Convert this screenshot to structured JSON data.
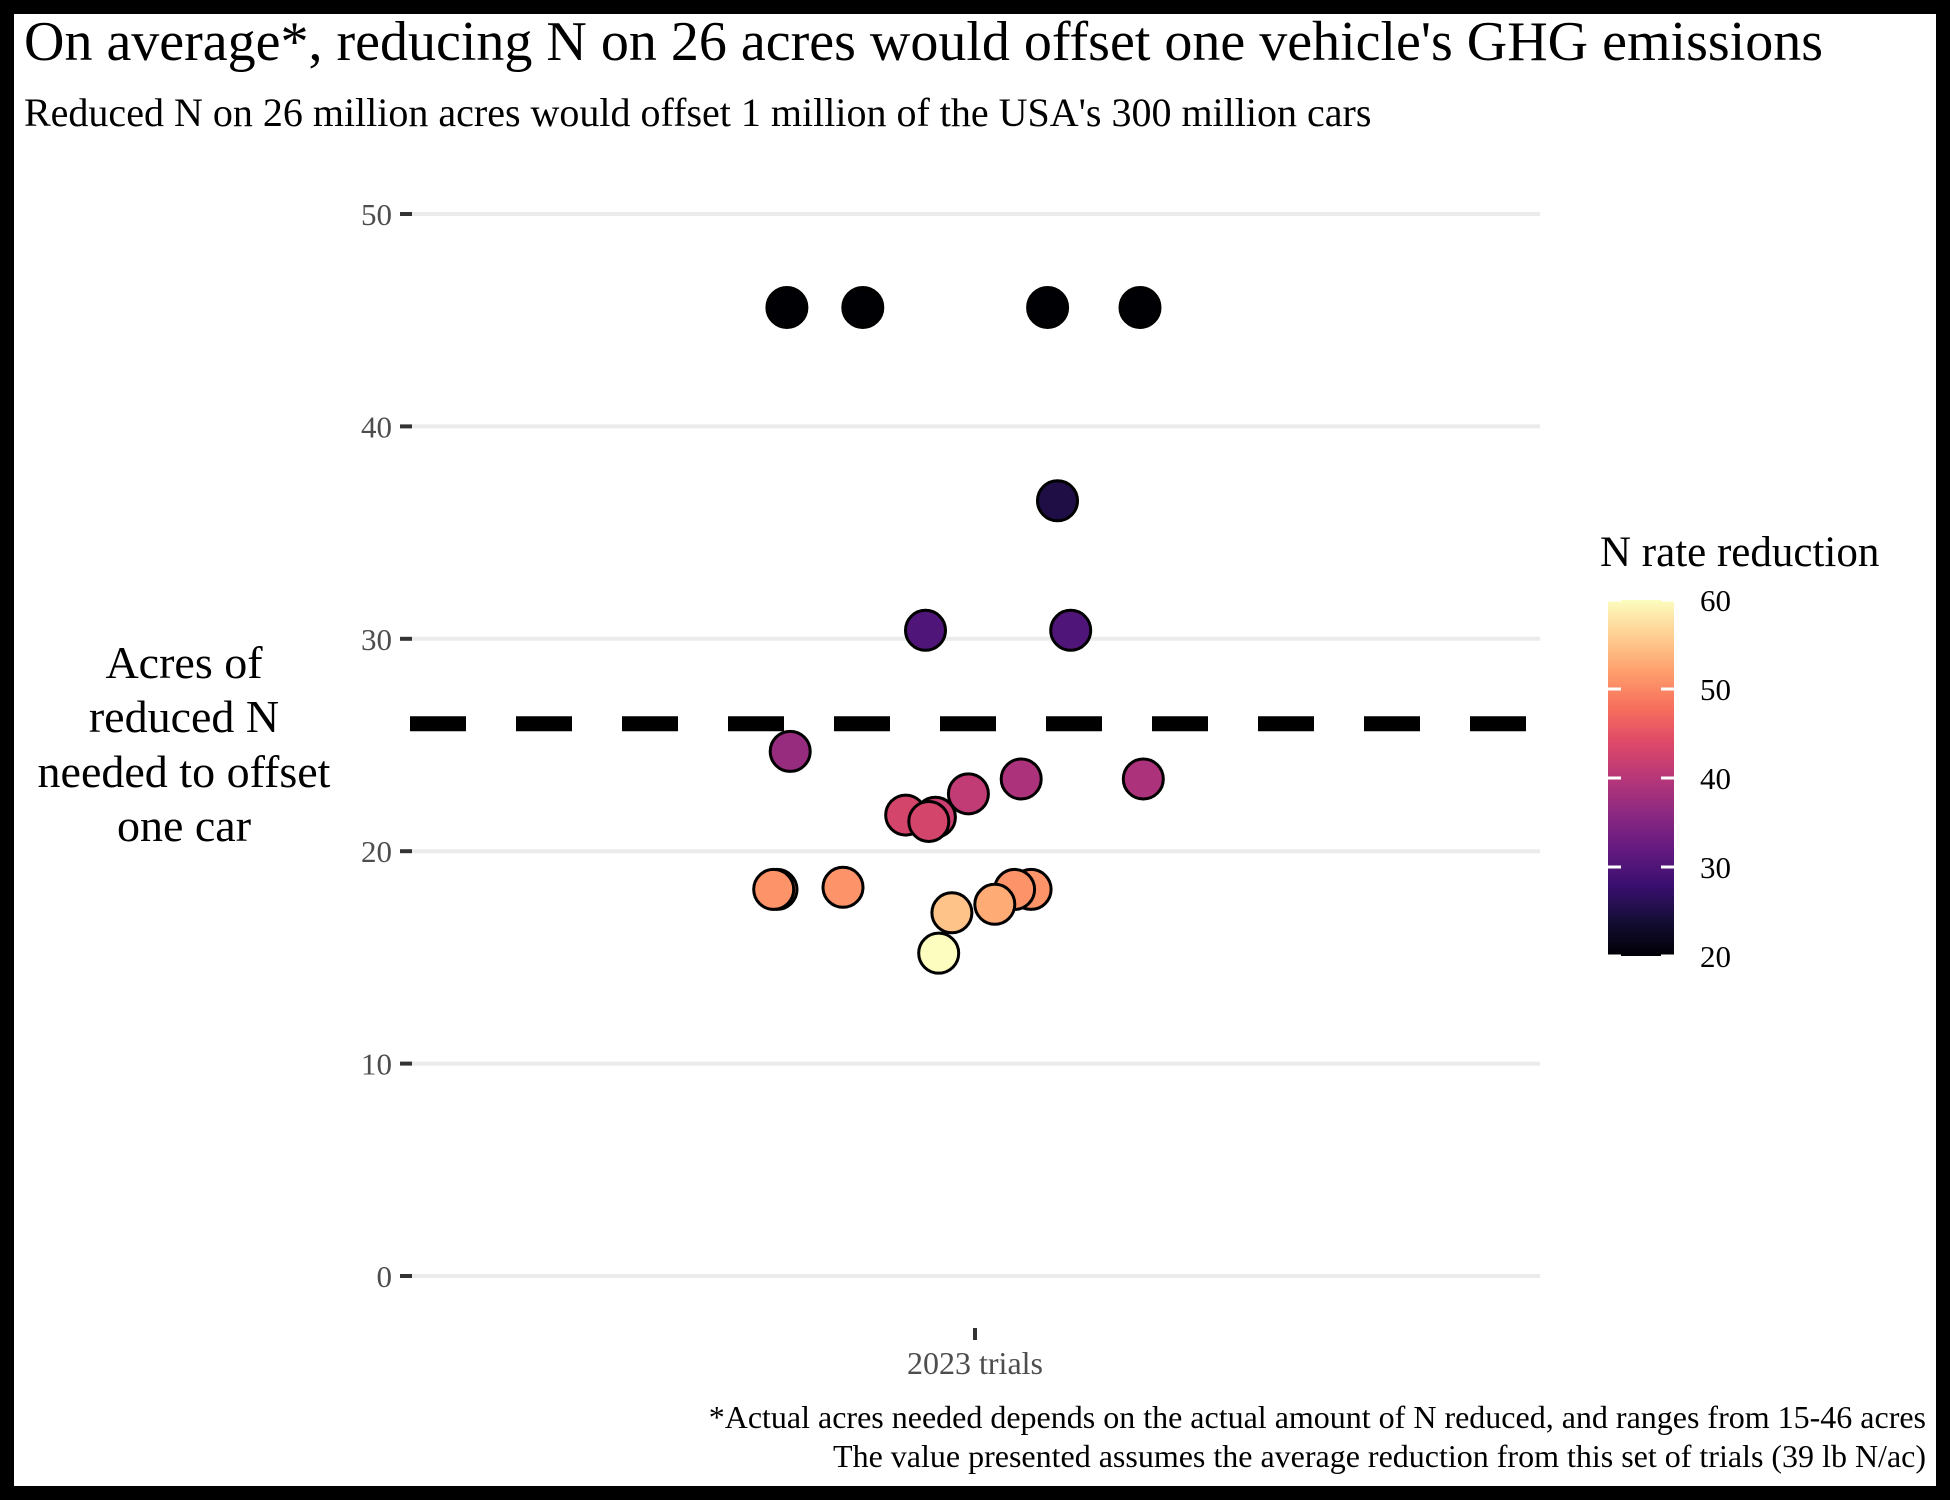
{
  "title": "On average*, reducing N on 26 acres would offset one vehicle's GHG emissions",
  "subtitle": "Reduced N on 26 million acres would offset 1 million of the USA's 300 million cars",
  "caption": {
    "line1": "*Actual acres needed depends on the actual amount of N reduced, and ranges from 15-46 acres",
    "line2": "The value presented assumes the average reduction from this set of trials (39 lb N/ac)"
  },
  "colors": {
    "frame": "#000000",
    "grid": "#ebebeb",
    "axis_text": "#4d4d4d",
    "reference_line": "#000000",
    "point_outline": "#000000"
  },
  "chart_data": {
    "type": "scatter",
    "title": "On average*, reducing N on 26 acres would offset one vehicle's GHG emissions",
    "subtitle": "Reduced N on 26 million acres would offset 1 million of the USA's 300 million cars",
    "ylabel_lines": [
      "Acres of",
      "reduced N",
      "needed to offset",
      "one car"
    ],
    "xlabel": "",
    "categories": [
      "2023 trials"
    ],
    "ylim": [
      0,
      50
    ],
    "yticks": [
      0,
      10,
      20,
      30,
      40,
      50
    ],
    "grid": true,
    "reference_line": {
      "y": 26,
      "style": "dashed"
    },
    "color_scale": {
      "name": "magma",
      "title": "N rate reduction",
      "limits": [
        20,
        60
      ],
      "ticks": [
        20,
        30,
        40,
        50,
        60
      ],
      "placement": "right"
    },
    "points": [
      {
        "jitter": -0.285,
        "y": 45.6,
        "n_reduction": 20
      },
      {
        "jitter": -0.17,
        "y": 45.6,
        "n_reduction": 20
      },
      {
        "jitter": 0.11,
        "y": 45.6,
        "n_reduction": 20
      },
      {
        "jitter": 0.25,
        "y": 45.6,
        "n_reduction": 20
      },
      {
        "jitter": 0.125,
        "y": 36.5,
        "n_reduction": 25
      },
      {
        "jitter": -0.075,
        "y": 30.4,
        "n_reduction": 30
      },
      {
        "jitter": 0.145,
        "y": 30.4,
        "n_reduction": 30
      },
      {
        "jitter": -0.28,
        "y": 24.7,
        "n_reduction": 37
      },
      {
        "jitter": 0.07,
        "y": 23.4,
        "n_reduction": 39
      },
      {
        "jitter": 0.255,
        "y": 23.4,
        "n_reduction": 39
      },
      {
        "jitter": -0.01,
        "y": 22.7,
        "n_reduction": 41
      },
      {
        "jitter": -0.06,
        "y": 21.6,
        "n_reduction": 42
      },
      {
        "jitter": -0.105,
        "y": 21.7,
        "n_reduction": 43
      },
      {
        "jitter": -0.07,
        "y": 21.4,
        "n_reduction": 43
      },
      {
        "jitter": -0.3,
        "y": 18.2,
        "n_reduction": 51
      },
      {
        "jitter": -0.305,
        "y": 18.2,
        "n_reduction": 51
      },
      {
        "jitter": -0.2,
        "y": 18.3,
        "n_reduction": 51
      },
      {
        "jitter": 0.085,
        "y": 18.2,
        "n_reduction": 51
      },
      {
        "jitter": 0.06,
        "y": 18.2,
        "n_reduction": 51
      },
      {
        "jitter": 0.03,
        "y": 17.5,
        "n_reduction": 53
      },
      {
        "jitter": -0.035,
        "y": 17.1,
        "n_reduction": 55
      },
      {
        "jitter": -0.055,
        "y": 15.2,
        "n_reduction": 60
      }
    ]
  }
}
